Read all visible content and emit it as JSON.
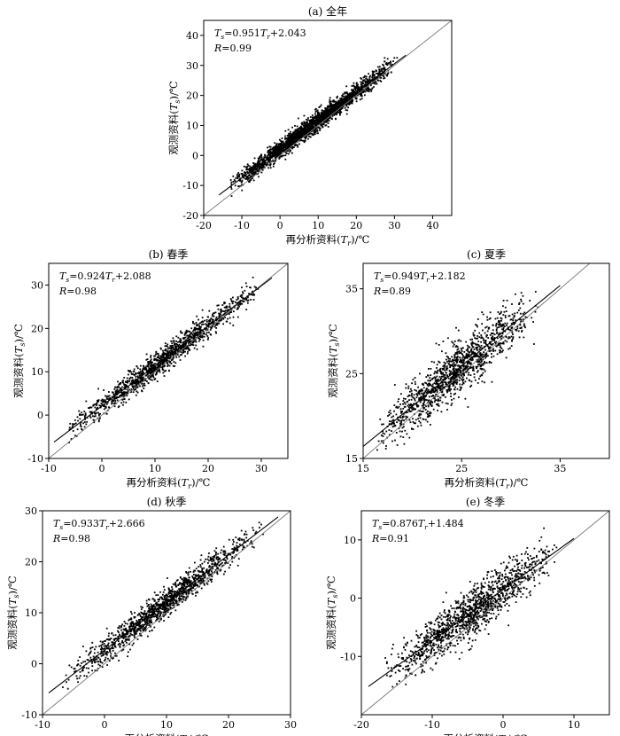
{
  "chart_data": [
    {
      "id": "a",
      "type": "scatter",
      "title": "(a) 全年",
      "xlabel_pre": "再分析资料(",
      "xlabel_var": "T",
      "xlabel_sub": "r",
      "xlabel_post": ")/℃",
      "ylabel_pre": "观测资料(",
      "ylabel_var": "T",
      "ylabel_sub": "s",
      "ylabel_post": ")/℃",
      "xlim": [
        -20,
        45
      ],
      "ylim": [
        -20,
        45
      ],
      "xticks": [
        -20,
        -10,
        0,
        10,
        20,
        30,
        40
      ],
      "yticks": [
        -20,
        -10,
        0,
        10,
        20,
        30,
        40
      ],
      "equation": {
        "lhs_var": "T",
        "lhs_sub": "s",
        "coef": "=0.951",
        "rhs_var": "T",
        "rhs_sub": "r",
        "intercept": "+2.043"
      },
      "r_label": "R",
      "r_value": "=0.99",
      "fit": {
        "slope": 0.951,
        "intercept": 2.043
      },
      "one_to_one": true,
      "scatter": {
        "x_min": -14,
        "x_max": 31,
        "noise": 1.5,
        "n": 2400,
        "seed": 11
      }
    },
    {
      "id": "b",
      "type": "scatter",
      "title": "(b) 春季",
      "xlabel_pre": "再分析资料(",
      "xlabel_var": "T",
      "xlabel_sub": "r",
      "xlabel_post": ")/℃",
      "ylabel_pre": "观测资料(",
      "ylabel_var": "T",
      "ylabel_sub": "s",
      "ylabel_post": ")/℃",
      "xlim": [
        -10,
        35
      ],
      "ylim": [
        -10,
        35
      ],
      "xticks": [
        -10,
        0,
        10,
        20,
        30
      ],
      "yticks": [
        -10,
        0,
        10,
        20,
        30
      ],
      "equation": {
        "lhs_var": "T",
        "lhs_sub": "s",
        "coef": "=0.924",
        "rhs_var": "T",
        "rhs_sub": "r",
        "intercept": "+2.088"
      },
      "r_label": "R",
      "r_value": "=0.98",
      "fit": {
        "slope": 0.924,
        "intercept": 2.088
      },
      "one_to_one": true,
      "scatter": {
        "x_min": -7,
        "x_max": 30,
        "noise": 1.4,
        "n": 1300,
        "seed": 23
      }
    },
    {
      "id": "c",
      "type": "scatter",
      "title": "(c) 夏季",
      "xlabel_pre": "再分析资料(",
      "xlabel_var": "T",
      "xlabel_sub": "r",
      "xlabel_post": ")/℃",
      "ylabel_pre": "观测资料(",
      "ylabel_var": "T",
      "ylabel_sub": "s",
      "ylabel_post": ")/℃",
      "xlim": [
        15,
        40
      ],
      "ylim": [
        15,
        38
      ],
      "xticks": [
        15,
        25,
        35
      ],
      "yticks": [
        15,
        25,
        35
      ],
      "equation": {
        "lhs_var": "T",
        "lhs_sub": "s",
        "coef": "=0.949",
        "rhs_var": "T",
        "rhs_sub": "r",
        "intercept": "+2.182"
      },
      "r_label": "R",
      "r_value": "=0.89",
      "fit": {
        "slope": 0.949,
        "intercept": 2.182
      },
      "one_to_one": true,
      "scatter": {
        "x_min": 16,
        "x_max": 33,
        "noise": 1.5,
        "n": 1300,
        "seed": 37
      }
    },
    {
      "id": "d",
      "type": "scatter",
      "title": "(d) 秋季",
      "xlabel_pre": "再分析资料(",
      "xlabel_var": "T",
      "xlabel_sub": "r",
      "xlabel_post": ")/℃",
      "ylabel_pre": "观测资料(",
      "ylabel_var": "T",
      "ylabel_sub": "s",
      "ylabel_post": ")/℃",
      "xlim": [
        -10,
        30
      ],
      "ylim": [
        -10,
        30
      ],
      "xticks": [
        -10,
        0,
        10,
        20,
        30
      ],
      "yticks": [
        -10,
        0,
        10,
        20,
        30
      ],
      "equation": {
        "lhs_var": "T",
        "lhs_sub": "s",
        "coef": "=0.933",
        "rhs_var": "T",
        "rhs_sub": "r",
        "intercept": "+2.666"
      },
      "r_label": "R",
      "r_value": "=0.98",
      "fit": {
        "slope": 0.933,
        "intercept": 2.666
      },
      "one_to_one": true,
      "scatter": {
        "x_min": -7,
        "x_max": 26,
        "noise": 1.4,
        "n": 1300,
        "seed": 41
      }
    },
    {
      "id": "e",
      "type": "scatter",
      "title": "(e) 冬季",
      "xlabel_pre": "再分析资料(",
      "xlabel_var": "T",
      "xlabel_sub": "r",
      "xlabel_post": ")/℃",
      "ylabel_pre": "观测资料(",
      "ylabel_var": "T",
      "ylabel_sub": "s",
      "ylabel_post": ")/℃",
      "xlim": [
        -20,
        15
      ],
      "ylim": [
        -20,
        15
      ],
      "xticks": [
        -20,
        -10,
        0,
        10
      ],
      "yticks": [
        -10,
        0,
        10
      ],
      "equation": {
        "lhs_var": "T",
        "lhs_sub": "s",
        "coef": "=0.876",
        "rhs_var": "T",
        "rhs_sub": "r",
        "intercept": "+1.484"
      },
      "r_label": "R",
      "r_value": "=0.91",
      "fit": {
        "slope": 0.876,
        "intercept": 1.484
      },
      "one_to_one": true,
      "scatter": {
        "x_min": -17,
        "x_max": 8,
        "noise": 2.0,
        "n": 1300,
        "seed": 53
      }
    }
  ]
}
